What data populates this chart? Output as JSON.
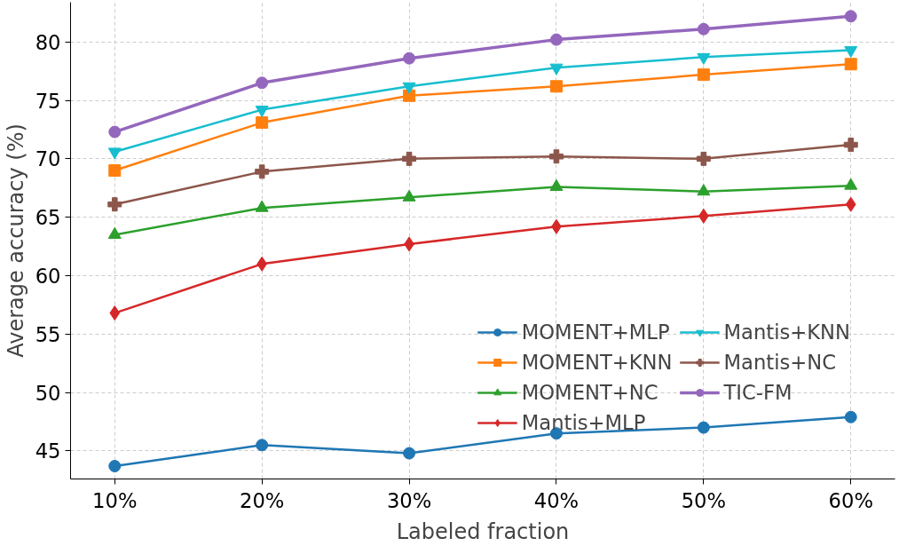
{
  "chart_data": {
    "type": "line",
    "xlabel": "Labeled fraction",
    "ylabel": "Average accuracy (%)",
    "categories": [
      "10%",
      "20%",
      "30%",
      "40%",
      "50%",
      "60%"
    ],
    "ylim": [
      42.6,
      83.4
    ],
    "yticks": [
      45,
      50,
      55,
      60,
      65,
      70,
      75,
      80
    ],
    "grid": true,
    "legend": "bottom right",
    "series": [
      {
        "name": "MOMENT+MLP",
        "color": "#1f77b4",
        "marker": "circle",
        "values": [
          43.7,
          45.5,
          44.8,
          46.5,
          47.0,
          47.9
        ]
      },
      {
        "name": "MOMENT+KNN",
        "color": "#ff7f0e",
        "marker": "square",
        "values": [
          69.0,
          73.1,
          75.4,
          76.2,
          77.2,
          78.1
        ]
      },
      {
        "name": "MOMENT+NC",
        "color": "#2ca02c",
        "marker": "triangle",
        "values": [
          63.5,
          65.8,
          66.7,
          67.6,
          67.2,
          67.7
        ]
      },
      {
        "name": "Mantis+MLP",
        "color": "#d62728",
        "marker": "diamond",
        "values": [
          56.8,
          61.0,
          62.7,
          64.2,
          65.1,
          66.1
        ]
      },
      {
        "name": "Mantis+KNN",
        "color": "#17becf",
        "marker": "triangle_down",
        "values": [
          70.6,
          74.2,
          76.2,
          77.8,
          78.7,
          79.3
        ]
      },
      {
        "name": "Mantis+NC",
        "color": "#8c564b",
        "marker": "cross",
        "values": [
          66.1,
          68.9,
          70.0,
          70.2,
          70.0,
          71.2
        ]
      },
      {
        "name": "TIC-FM",
        "color": "#9467bd",
        "marker": "circle",
        "values": [
          72.3,
          76.5,
          78.6,
          80.2,
          81.1,
          82.2
        ]
      }
    ]
  }
}
